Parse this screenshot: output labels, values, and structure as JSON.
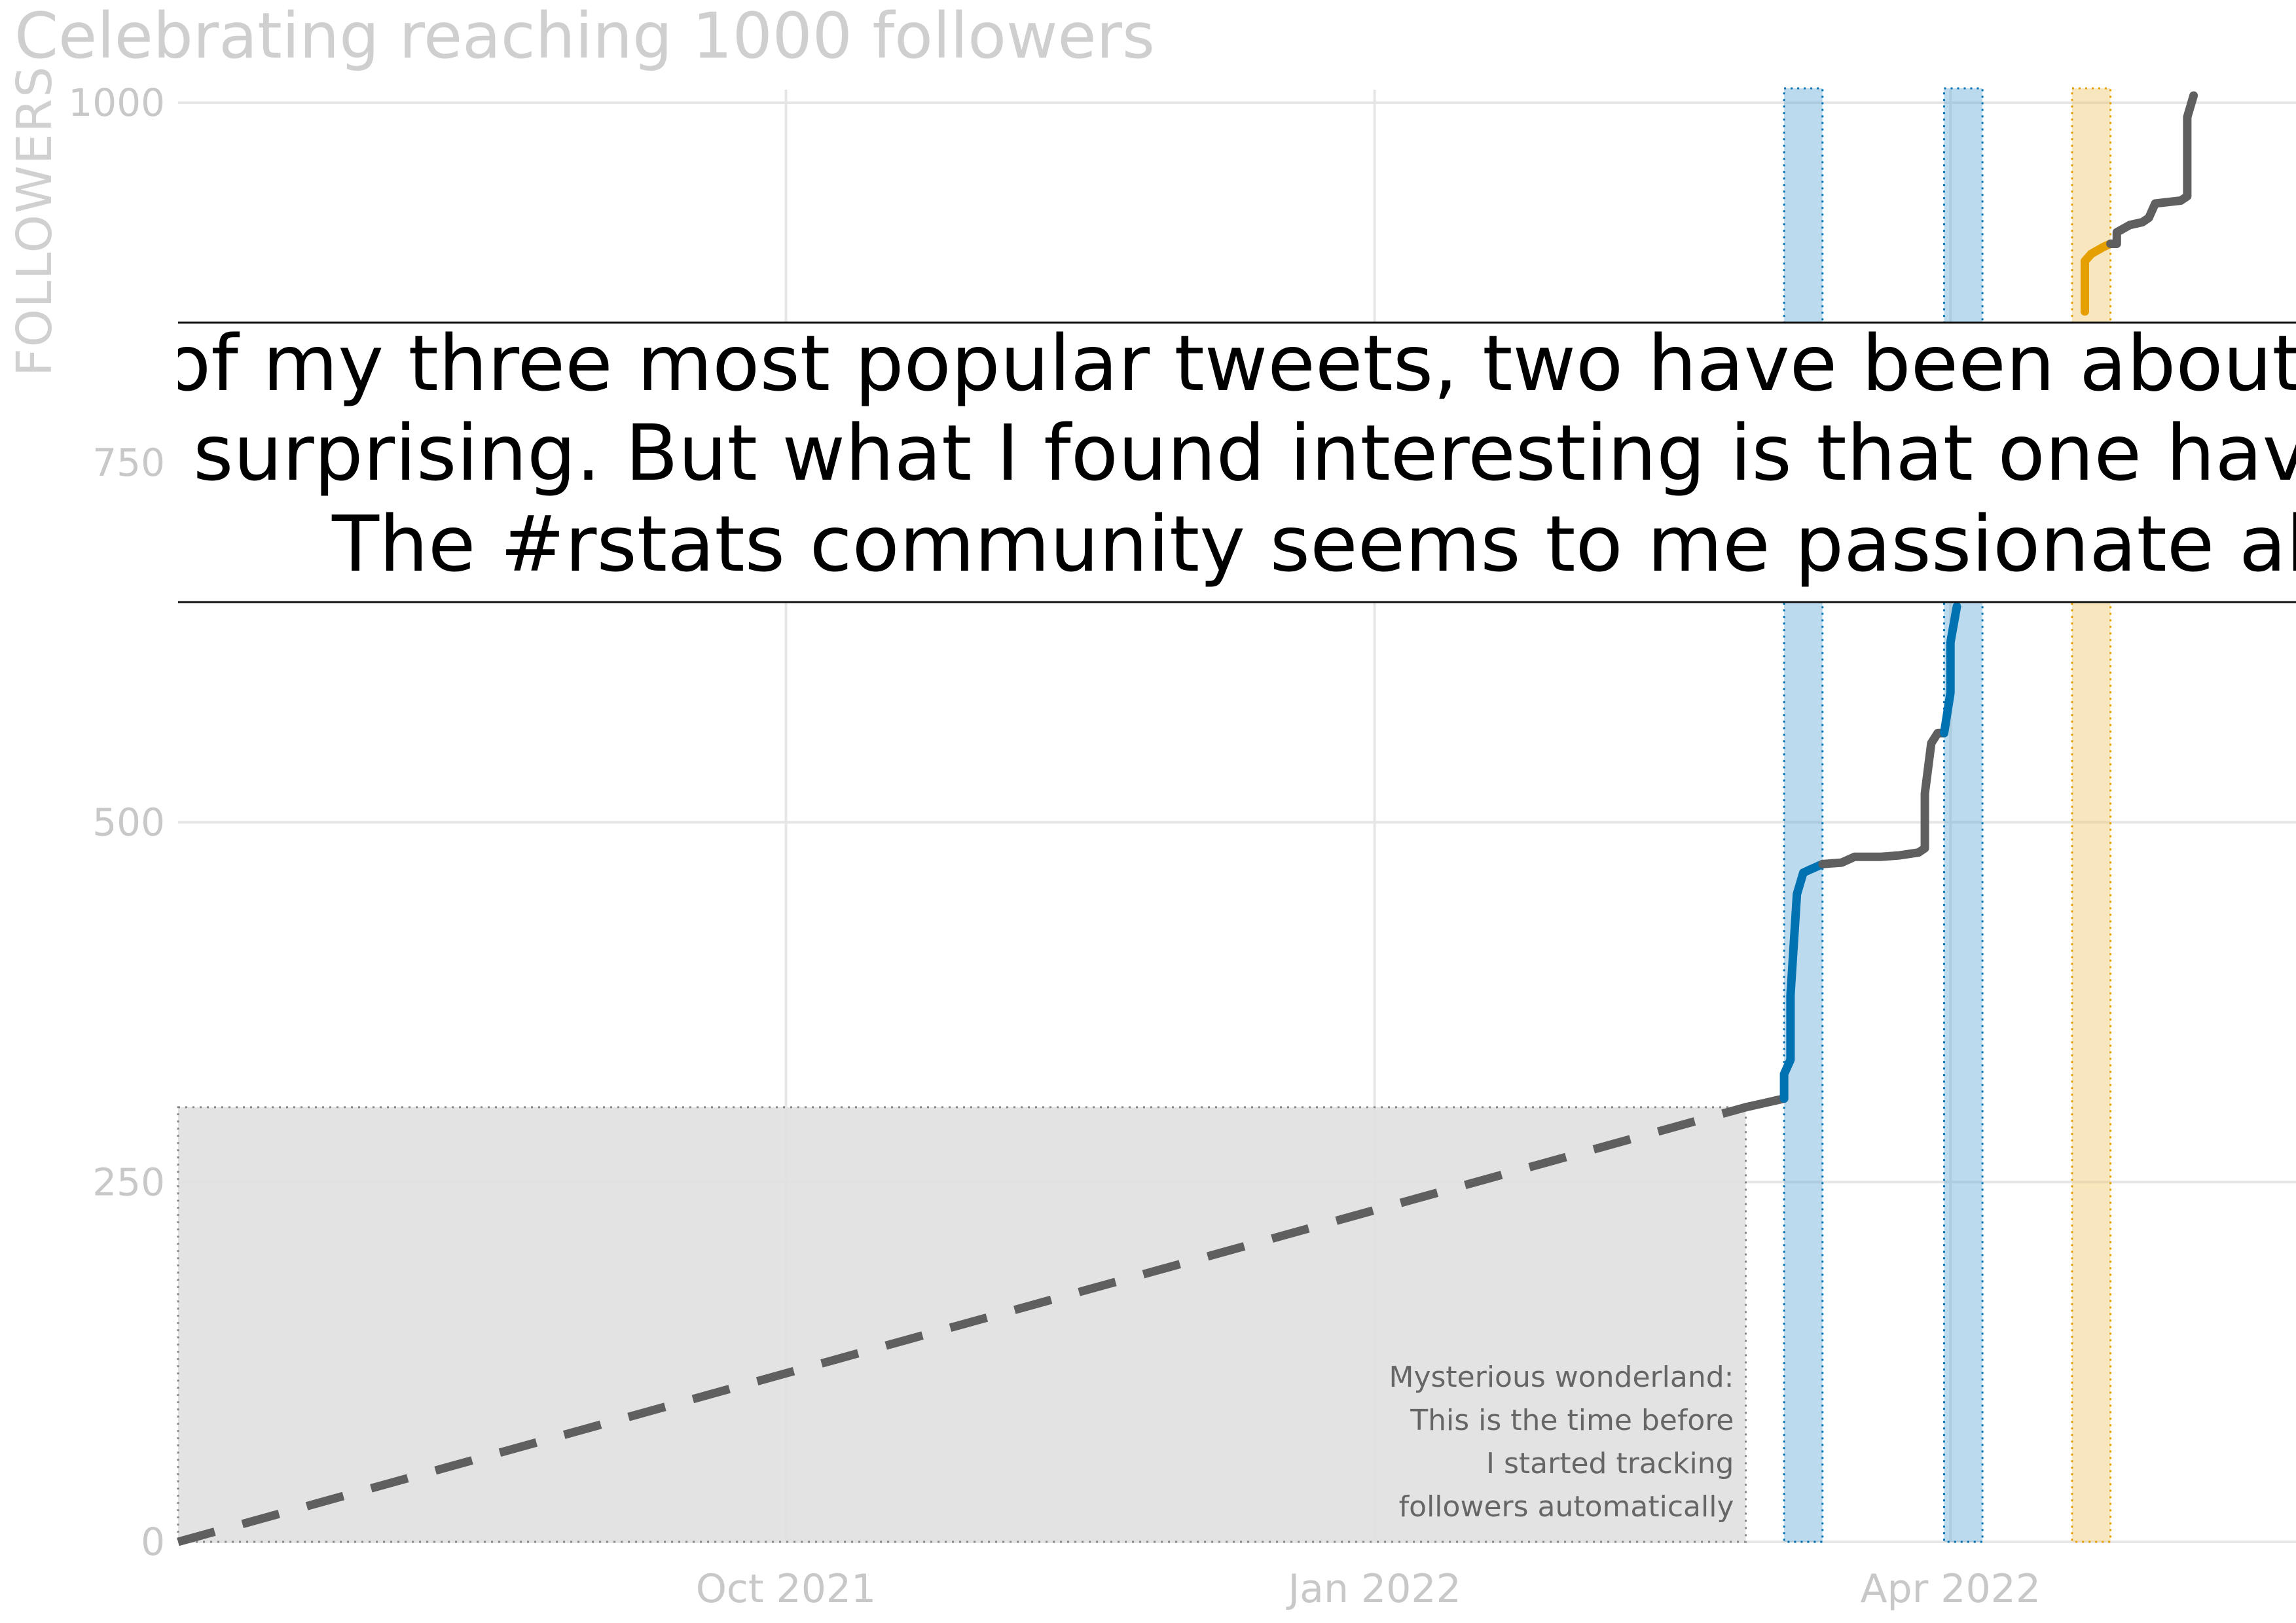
{
  "chart_data": {
    "type": "line",
    "title": "Celebrating reaching 1000 followers",
    "xlabel": "",
    "ylabel": "FOLLOWERS",
    "ylim": [
      0,
      1000
    ],
    "xlim": [
      "2021-06-28",
      "2022-05-25"
    ],
    "y_ticks": [
      "0",
      "250",
      "500",
      "750",
      "1000"
    ],
    "x_ticks": [
      {
        "date": "2021-10-01",
        "label": "Oct 2021"
      },
      {
        "date": "2022-01-01",
        "label": "Jan 2022"
      },
      {
        "date": "2022-04-01",
        "label": "Apr 2022"
      }
    ],
    "grid": true,
    "legend": "none",
    "colors": {
      "line": "#5f5f5f",
      "blue": "#0072b2",
      "orange": "#e69f00",
      "blue_band": "#6baed6",
      "orange_band": "#f0c96e",
      "untracked_region": "#e0e0e0",
      "grid": "#e6e6e6"
    },
    "untracked_period": {
      "start": "2021-06-28",
      "end": "2022-02-28",
      "max_followers": 302,
      "annotation": [
        "Mysterious wonderland:",
        "This is the time before",
        "I started tracking",
        "followers automatically"
      ]
    },
    "highlight_bands": [
      {
        "start": "2022-03-06",
        "end": "2022-03-12",
        "color": "blue"
      },
      {
        "start": "2022-03-31",
        "end": "2022-04-06",
        "color": "blue"
      },
      {
        "start": "2022-04-20",
        "end": "2022-04-26",
        "color": "orange"
      }
    ],
    "series": [
      {
        "segment": "untracked",
        "style": "dashed",
        "x": [
          "2021-06-28",
          "2022-02-28"
        ],
        "y": [
          0,
          302
        ]
      },
      {
        "segment": "tracked",
        "style": "solid",
        "x": [
          "2022-02-28",
          "2022-03-03",
          "2022-03-05",
          "2022-03-06"
        ],
        "y": [
          302,
          305,
          307,
          308
        ]
      },
      {
        "segment": "tweet-1",
        "style": "solid",
        "color": "blue",
        "x": [
          "2022-03-06",
          "2022-03-06",
          "2022-03-07",
          "2022-03-07",
          "2022-03-08",
          "2022-03-09",
          "2022-03-10",
          "2022-03-12"
        ],
        "y": [
          308,
          325,
          335,
          380,
          450,
          465,
          467,
          471
        ]
      },
      {
        "segment": "tracked",
        "style": "solid",
        "x": [
          "2022-03-12",
          "2022-03-15",
          "2022-03-17",
          "2022-03-21",
          "2022-03-24",
          "2022-03-27",
          "2022-03-28",
          "2022-03-28",
          "2022-03-29",
          "2022-03-30",
          "2022-03-31"
        ],
        "y": [
          471,
          472,
          476,
          476,
          477,
          479,
          482,
          520,
          555,
          562,
          562
        ]
      },
      {
        "segment": "tweet-2",
        "style": "solid",
        "color": "blue",
        "x": [
          "2022-03-31",
          "2022-04-01",
          "2022-04-01",
          "2022-04-02"
        ],
        "y": [
          562,
          590,
          625,
          650
        ]
      },
      {
        "segment": "tweet-3",
        "style": "solid",
        "color": "orange",
        "x": [
          "2022-04-22",
          "2022-04-22",
          "2022-04-23",
          "2022-04-25",
          "2022-04-26"
        ],
        "y": [
          855,
          890,
          895,
          900,
          902
        ]
      },
      {
        "segment": "tracked",
        "style": "solid",
        "x": [
          "2022-04-26",
          "2022-04-27",
          "2022-04-27",
          "2022-04-29",
          "2022-05-01",
          "2022-05-02",
          "2022-05-03",
          "2022-05-07",
          "2022-05-08",
          "2022-05-08",
          "2022-05-09"
        ],
        "y": [
          902,
          902,
          910,
          915,
          917,
          920,
          930,
          932,
          935,
          990,
          1005
        ]
      }
    ],
    "quote_lines": [
      "of my three most popular tweets, two have been about data",
      "surprising. But what I found interesting is that one have bee",
      "The #rstats community seems to me passionate about t"
    ]
  }
}
